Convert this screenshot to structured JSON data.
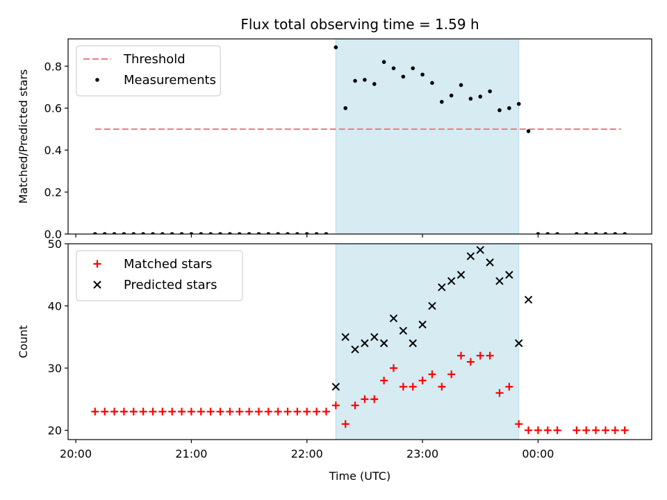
{
  "figure": {
    "title": "Flux total observing time = 1.59 h",
    "xlabel": "Time (UTC)",
    "xticks": [
      "20:00",
      "21:00",
      "22:00",
      "23:00",
      "00:00"
    ],
    "xtick_minutes": [
      0,
      60,
      120,
      180,
      240
    ],
    "xlim_minutes": [
      -4,
      299
    ],
    "shaded_interval_minutes": [
      135,
      230
    ],
    "shade_color": "#add8e6"
  },
  "chart_data": [
    {
      "type": "scatter",
      "ylabel": "Matched/Predicted stars",
      "ylim": [
        0,
        0.93
      ],
      "yticks": [
        "0.0",
        "0.2",
        "0.4",
        "0.6",
        "0.8"
      ],
      "ytick_values": [
        0,
        0.2,
        0.4,
        0.6,
        0.8
      ],
      "legend_position": "top-left",
      "threshold": {
        "name": "Threshold",
        "y": 0.5,
        "x_range_minutes": [
          10,
          283
        ],
        "color": "#f08080",
        "style": "dashed"
      },
      "series": [
        {
          "name": "Measurements",
          "color": "#000000",
          "marker": "dot",
          "x_minutes": [
            10,
            15,
            20,
            25,
            30,
            35,
            40,
            45,
            50,
            55,
            60,
            65,
            70,
            75,
            80,
            85,
            90,
            95,
            100,
            105,
            110,
            115,
            120,
            125,
            130,
            135,
            140,
            145,
            150,
            155,
            160,
            165,
            170,
            175,
            180,
            185,
            190,
            195,
            200,
            205,
            210,
            215,
            220,
            225,
            230,
            235,
            240,
            245,
            250,
            260,
            265,
            270,
            275,
            280,
            285
          ],
          "y": [
            0,
            0,
            0,
            0,
            0,
            0,
            0,
            0,
            0,
            0,
            0,
            0,
            0,
            0,
            0,
            0,
            0,
            0,
            0,
            0,
            0,
            0,
            0,
            0,
            0,
            0.89,
            0.6,
            0.73,
            0.735,
            0.715,
            0.82,
            0.79,
            0.75,
            0.79,
            0.76,
            0.72,
            0.63,
            0.66,
            0.71,
            0.645,
            0.655,
            0.68,
            0.59,
            0.6,
            0.62,
            0.49,
            0,
            0,
            0,
            0,
            0,
            0,
            0,
            0,
            0
          ]
        }
      ]
    },
    {
      "type": "scatter",
      "ylabel": "Count",
      "ylim": [
        18.5,
        50
      ],
      "yticks": [
        "20",
        "30",
        "40",
        "50"
      ],
      "ytick_values": [
        20,
        30,
        40,
        50
      ],
      "legend_position": "top-left",
      "series": [
        {
          "name": "Matched stars",
          "color": "#ff0000",
          "marker": "plus",
          "x_minutes": [
            10,
            15,
            20,
            25,
            30,
            35,
            40,
            45,
            50,
            55,
            60,
            65,
            70,
            75,
            80,
            85,
            90,
            95,
            100,
            105,
            110,
            115,
            120,
            125,
            130,
            135,
            140,
            145,
            150,
            155,
            160,
            165,
            170,
            175,
            180,
            185,
            190,
            195,
            200,
            205,
            210,
            215,
            220,
            225,
            230,
            235,
            240,
            245,
            250,
            260,
            265,
            270,
            275,
            280,
            285
          ],
          "y": [
            23,
            23,
            23,
            23,
            23,
            23,
            23,
            23,
            23,
            23,
            23,
            23,
            23,
            23,
            23,
            23,
            23,
            23,
            23,
            23,
            23,
            23,
            23,
            23,
            23,
            24,
            21,
            24,
            25,
            25,
            28,
            30,
            27,
            27,
            28,
            29,
            27,
            29,
            32,
            31,
            32,
            32,
            26,
            27,
            21,
            20,
            20,
            20,
            20,
            20,
            20,
            20,
            20,
            20,
            20
          ]
        },
        {
          "name": "Predicted stars",
          "color": "#000000",
          "marker": "x",
          "x_minutes": [
            135,
            140,
            145,
            150,
            155,
            160,
            165,
            170,
            175,
            180,
            185,
            190,
            195,
            200,
            205,
            210,
            215,
            220,
            225,
            230,
            235
          ],
          "y": [
            27,
            35,
            33,
            34,
            35,
            34,
            38,
            36,
            34,
            37,
            40,
            43,
            44,
            45,
            48,
            49,
            47,
            44,
            45,
            34,
            41
          ]
        }
      ]
    }
  ]
}
